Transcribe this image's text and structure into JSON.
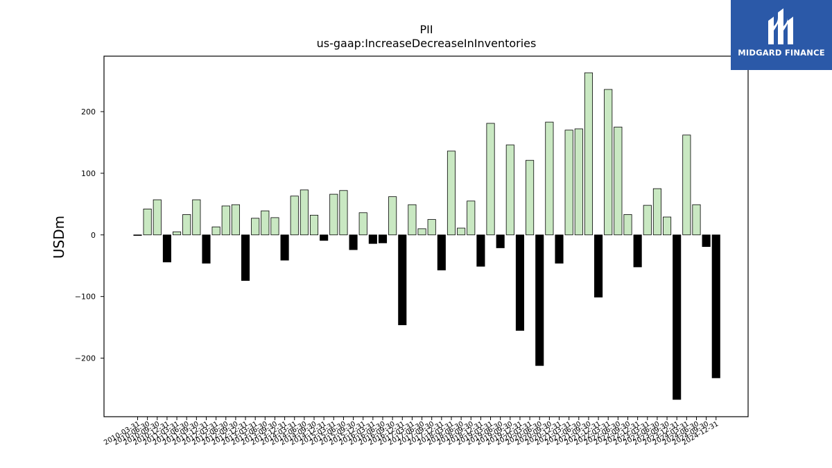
{
  "chart_data": {
    "type": "bar",
    "title": "PII",
    "subtitle": "us-gaap:IncreaseDecreaseInInventories",
    "ylabel": "USDm",
    "xlabel": "",
    "ylim": [
      -295,
      290
    ],
    "yticks": [
      -200,
      -100,
      0,
      100,
      200
    ],
    "ytick_labels": [
      "−200",
      "−100",
      "0",
      "100",
      "200"
    ],
    "grid": false,
    "colors": {
      "positive": "#c9e8c2",
      "negative": "#000000",
      "edge": "#000000"
    },
    "categories": [
      "2010-03-31",
      "2010-06-30",
      "2010-09-30",
      "2010-12-31",
      "2011-03-31",
      "2011-06-30",
      "2011-09-30",
      "2011-12-31",
      "2012-03-31",
      "2012-06-30",
      "2012-09-30",
      "2012-12-31",
      "2013-03-31",
      "2013-06-30",
      "2013-09-30",
      "2013-12-31",
      "2014-03-31",
      "2014-06-30",
      "2014-09-30",
      "2014-12-31",
      "2015-03-31",
      "2015-06-30",
      "2015-09-30",
      "2015-12-31",
      "2016-03-31",
      "2016-06-30",
      "2016-09-30",
      "2016-12-31",
      "2017-03-31",
      "2017-06-30",
      "2017-09-30",
      "2017-12-31",
      "2018-03-31",
      "2018-06-30",
      "2018-09-30",
      "2018-12-31",
      "2019-03-31",
      "2019-06-30",
      "2019-09-30",
      "2019-12-31",
      "2020-03-31",
      "2020-06-30",
      "2020-09-30",
      "2020-12-31",
      "2021-03-31",
      "2021-06-30",
      "2021-09-30",
      "2021-12-31",
      "2022-03-31",
      "2022-06-30",
      "2022-09-30",
      "2022-12-31",
      "2023-03-31",
      "2023-06-30",
      "2023-09-30",
      "2023-12-31",
      "2024-03-31",
      "2024-06-30",
      "2024-09-30",
      "2024-12-31"
    ],
    "values": [
      -1,
      42,
      57,
      -44,
      5,
      33,
      57,
      -46,
      13,
      47,
      49,
      -74,
      27,
      39,
      28,
      -41,
      63,
      73,
      32,
      -9,
      66,
      72,
      -24,
      36,
      -14,
      -13,
      62,
      -146,
      49,
      10,
      25,
      -57,
      136,
      11,
      55,
      -51,
      181,
      -21,
      146,
      -155,
      121,
      -212,
      183,
      -46,
      170,
      172,
      263,
      -101,
      236,
      175,
      33,
      -52,
      48,
      75,
      29,
      -267,
      162,
      49,
      -19,
      -232
    ]
  },
  "brand": {
    "name": "MIDGARD FINANCE",
    "color": "#2b59a8"
  }
}
